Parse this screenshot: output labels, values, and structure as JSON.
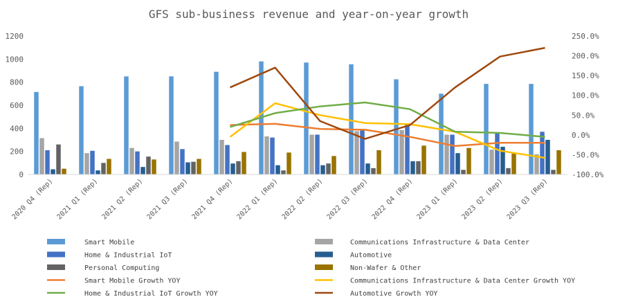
{
  "chart_data": {
    "type": "bar",
    "title": "GFS sub-business revenue and year-on-year growth",
    "categories": [
      "2020 Q4 (Rep)",
      "2021 Q1 (Rep)",
      "2021 Q2 (Rep)",
      "2021 Q3 (Rep)",
      "2021 Q4 (Rep)",
      "2022 Q1 (Rep)",
      "2022 Q2 (Rep)",
      "2022 Q3 (Rep)",
      "2022 Q4 (Rep)",
      "2023 Q1 (Rep)",
      "2023 Q2 (Rep)",
      "2023 Q3 (Rep)"
    ],
    "y_left": {
      "min": 0,
      "max": 1200,
      "ticks": [
        "0",
        "200",
        "400",
        "600",
        "800",
        "1000",
        "1200"
      ]
    },
    "y_right": {
      "min": -100,
      "max": 250,
      "ticks": [
        "-100.0%",
        "-50.0%",
        "0.0%",
        "50.0%",
        "100.0%",
        "150.0%",
        "200.0%",
        "250.0%"
      ]
    },
    "grid": false,
    "legend_position": "bottom",
    "bar_series": [
      {
        "name": "Smart Mobile",
        "color": "#5B9BD5",
        "values": [
          715,
          765,
          850,
          850,
          890,
          980,
          970,
          955,
          825,
          700,
          785,
          785
        ]
      },
      {
        "name": "Communications Infrastructure & Data Center",
        "color": "#A5A5A5",
        "values": [
          315,
          185,
          230,
          285,
          300,
          330,
          345,
          375,
          385,
          345,
          215,
          175
        ]
      },
      {
        "name": "Home & Industrial IoT",
        "color": "#4472C4",
        "values": [
          210,
          205,
          200,
          220,
          255,
          320,
          345,
          385,
          430,
          345,
          355,
          370
        ]
      },
      {
        "name": "Automotive",
        "color": "#255E91",
        "values": [
          45,
          35,
          65,
          105,
          95,
          80,
          80,
          95,
          115,
          185,
          240,
          300
        ]
      },
      {
        "name": "Personal Computing",
        "color": "#636363",
        "values": [
          260,
          100,
          155,
          110,
          115,
          35,
          95,
          55,
          115,
          40,
          55,
          40
        ]
      },
      {
        "name": "Non-Wafer & Other",
        "color": "#997300",
        "values": [
          50,
          135,
          130,
          135,
          195,
          190,
          160,
          210,
          250,
          230,
          180,
          210
        ]
      }
    ],
    "line_series": [
      {
        "name": "Smart Mobile Growth YOY",
        "color": "#ED7D31",
        "x_start": 4,
        "values": [
          25,
          28,
          15,
          13,
          -5,
          -28,
          -20,
          -20
        ]
      },
      {
        "name": "Communications Infrastructure & Data Center Growth YOY",
        "color": "#FFC000",
        "x_start": 4,
        "values": [
          -5,
          80,
          50,
          30,
          27,
          8,
          -40,
          -58
        ]
      },
      {
        "name": "Home & Industrial IoT Growth YOY",
        "color": "#70AD47",
        "x_start": 4,
        "values": [
          20,
          55,
          72,
          82,
          65,
          8,
          5,
          -5
        ]
      },
      {
        "name": "Automotive Growth YOY",
        "color": "#9E480E",
        "x_start": 4,
        "values": [
          120,
          170,
          35,
          -10,
          25,
          120,
          198,
          220
        ]
      }
    ],
    "legend": {
      "items": [
        "Smart Mobile",
        "Communications Infrastructure & Data Center",
        "Home & Industrial IoT",
        "Automotive",
        "Personal Computing",
        "Non-Wafer & Other",
        "Smart Mobile Growth YOY",
        "Communications Infrastructure & Data Center Growth YOY",
        "Home & Industrial IoT Growth YOY",
        "Automotive Growth YOY"
      ]
    }
  }
}
